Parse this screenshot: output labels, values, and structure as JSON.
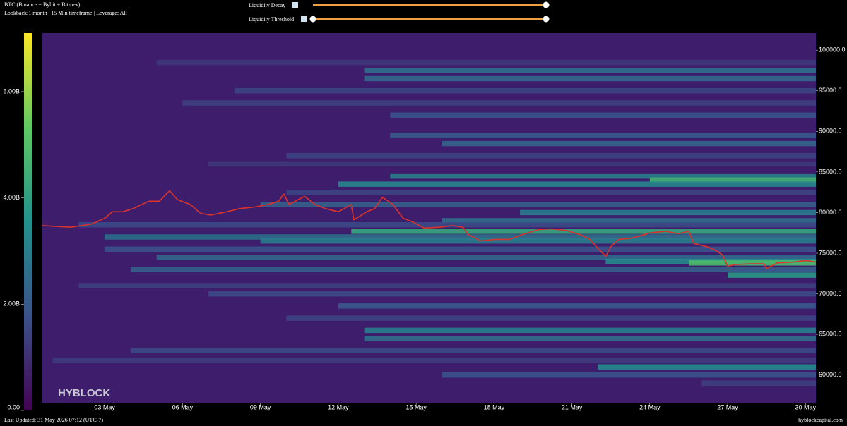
{
  "header": {
    "title": "BTC (Binance + Bybit + Bitmex)",
    "subtitle": "Lookback:1 month | 15 Min timeframe | Leverage: All"
  },
  "controls": [
    "Liquidity Decay",
    "Liquidity Threshold"
  ],
  "footer": {
    "updated": "Last Updated: 31 May 2026 07:12 (UTC-7)",
    "site": "hyblockcapital.com",
    "watermark": "HYBLOCK"
  },
  "chart_data": {
    "type": "heatmap",
    "xlim": [
      0.6,
      30.4
    ],
    "xticks": [
      {
        "value": 3,
        "label": "03 May"
      },
      {
        "value": 6,
        "label": "06 May"
      },
      {
        "value": 9,
        "label": "09 May"
      },
      {
        "value": 12,
        "label": "12 May"
      },
      {
        "value": 15,
        "label": "15 May"
      },
      {
        "value": 18,
        "label": "18 May"
      },
      {
        "value": 21,
        "label": "21 May"
      },
      {
        "value": 24,
        "label": "24 May"
      },
      {
        "value": 27,
        "label": "27 May"
      },
      {
        "value": 30,
        "label": "30 May"
      }
    ],
    "ylim": [
      56500,
      102100
    ],
    "yticks": [
      {
        "value": 60000,
        "label": "60000.0"
      },
      {
        "value": 65000,
        "label": "65000.0"
      },
      {
        "value": 70000,
        "label": "70000.0"
      },
      {
        "value": 75000,
        "label": "75000.0"
      },
      {
        "value": 80000,
        "label": "80000.0"
      },
      {
        "value": 85000,
        "label": "85000.0"
      },
      {
        "value": 90000,
        "label": "90000.0"
      },
      {
        "value": 95000,
        "label": "95000.0"
      },
      {
        "value": 100000,
        "label": "100000.0"
      }
    ],
    "clim": [
      0,
      7100000000
    ],
    "cticks": [
      {
        "value": 0,
        "label": "0.00"
      },
      {
        "value": 2000000000,
        "label": "2.00B"
      },
      {
        "value": 4000000000,
        "label": "4.00B"
      },
      {
        "value": 6000000000,
        "label": "6.00B"
      }
    ],
    "bands": [
      {
        "price": 98500,
        "start": 5,
        "value": 1200000000
      },
      {
        "price": 97500,
        "start": 13,
        "value": 2600000000
      },
      {
        "price": 96500,
        "start": 13,
        "value": 2400000000
      },
      {
        "price": 95000,
        "start": 8,
        "value": 1500000000
      },
      {
        "price": 93500,
        "start": 6,
        "value": 1400000000
      },
      {
        "price": 92000,
        "start": 14,
        "value": 1800000000
      },
      {
        "price": 89500,
        "start": 14,
        "value": 2000000000
      },
      {
        "price": 88500,
        "start": 16,
        "value": 2300000000
      },
      {
        "price": 87000,
        "start": 10,
        "value": 1500000000
      },
      {
        "price": 86000,
        "start": 7,
        "value": 1200000000
      },
      {
        "price": 84500,
        "start": 14,
        "value": 3000000000
      },
      {
        "price": 84000,
        "start": 24,
        "value": 4600000000
      },
      {
        "price": 83500,
        "start": 12,
        "value": 3300000000
      },
      {
        "price": 82500,
        "start": 10,
        "value": 1500000000
      },
      {
        "price": 81000,
        "start": 9,
        "value": 2200000000
      },
      {
        "price": 80000,
        "start": 19,
        "value": 3000000000
      },
      {
        "price": 79000,
        "start": 16,
        "value": 2600000000
      },
      {
        "price": 78500,
        "start": 2,
        "value": 1600000000
      },
      {
        "price": 77700,
        "start": 12.5,
        "value": 4200000000
      },
      {
        "price": 77000,
        "start": 3,
        "value": 2600000000
      },
      {
        "price": 76500,
        "start": 9,
        "value": 3000000000
      },
      {
        "price": 75500,
        "start": 3,
        "value": 1800000000
      },
      {
        "price": 74500,
        "start": 5,
        "value": 2400000000
      },
      {
        "price": 74000,
        "start": 22.3,
        "value": 3400000000
      },
      {
        "price": 73800,
        "start": 25.5,
        "value": 4800000000
      },
      {
        "price": 73000,
        "start": 4,
        "value": 2200000000
      },
      {
        "price": 72300,
        "start": 27,
        "value": 3800000000
      },
      {
        "price": 71000,
        "start": 2,
        "value": 1400000000
      },
      {
        "price": 70000,
        "start": 7,
        "value": 1600000000
      },
      {
        "price": 68500,
        "start": 12,
        "value": 2000000000
      },
      {
        "price": 67000,
        "start": 10,
        "value": 1500000000
      },
      {
        "price": 65500,
        "start": 13,
        "value": 3000000000
      },
      {
        "price": 64500,
        "start": 13,
        "value": 2600000000
      },
      {
        "price": 63000,
        "start": 4,
        "value": 1600000000
      },
      {
        "price": 61800,
        "start": 1,
        "value": 1300000000
      },
      {
        "price": 61000,
        "start": 22,
        "value": 3400000000
      },
      {
        "price": 60000,
        "start": 16,
        "value": 1800000000
      },
      {
        "price": 59000,
        "start": 26,
        "value": 1400000000
      }
    ],
    "price_color": "#d9342b",
    "x": [
      0.6,
      1.7,
      2.5,
      3.0,
      3.3,
      3.7,
      4.1,
      4.7,
      5.1,
      5.5,
      5.8,
      6.3,
      6.7,
      7.1,
      7.7,
      8.2,
      8.8,
      9.3,
      9.7,
      9.9,
      10.1,
      10.7,
      11.1,
      11.5,
      12.0,
      12.5,
      12.6,
      13.1,
      13.4,
      13.7,
      14.1,
      14.5,
      14.9,
      15.3,
      15.9,
      16.4,
      16.8,
      17.0,
      17.5,
      18.0,
      18.6,
      19.1,
      19.7,
      20.2,
      20.8,
      21.3,
      21.7,
      22.0,
      22.3,
      22.5,
      22.8,
      23.2,
      23.6,
      24.0,
      24.6,
      25.1,
      25.5,
      25.7,
      26.2,
      26.5,
      26.8,
      27.0,
      27.3,
      27.9,
      28.4,
      28.5,
      28.9,
      29.5,
      30.0,
      30.4
    ],
    "values": [
      78400,
      78200,
      78600,
      79300,
      80100,
      80100,
      80500,
      81400,
      81400,
      82700,
      81600,
      81000,
      79900,
      79700,
      80100,
      80500,
      80700,
      81000,
      81400,
      82300,
      81000,
      82000,
      81000,
      80500,
      80100,
      81000,
      79100,
      80100,
      80500,
      81900,
      81000,
      79300,
      78800,
      78100,
      78200,
      78400,
      78200,
      77300,
      76500,
      76700,
      76700,
      77300,
      77900,
      78000,
      77800,
      77300,
      76700,
      75600,
      74600,
      75800,
      76700,
      76800,
      77100,
      77500,
      77700,
      77400,
      77700,
      76200,
      75800,
      75400,
      74800,
      73400,
      73600,
      73700,
      73700,
      73100,
      73800,
      73900,
      74100,
      73900
    ]
  }
}
